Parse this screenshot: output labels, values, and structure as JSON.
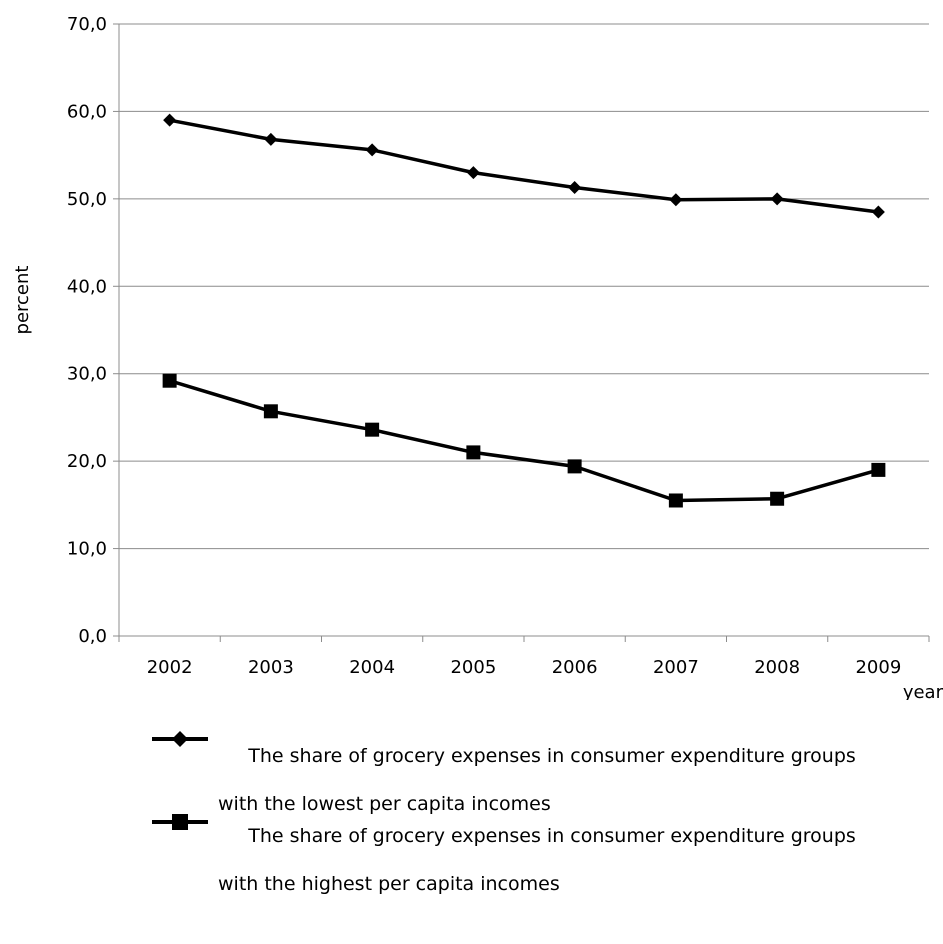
{
  "chart_data": {
    "type": "line",
    "title": "",
    "xlabel": "year",
    "ylabel": "percent",
    "categories": [
      "2002",
      "2003",
      "2004",
      "2005",
      "2006",
      "2007",
      "2008",
      "2009"
    ],
    "ylim": [
      0,
      70
    ],
    "yticks": [
      "0,0",
      "10,0",
      "20,0",
      "30,0",
      "40,0",
      "50,0",
      "60,0",
      "70,0"
    ],
    "grid": "horizontal",
    "legend_position": "bottom",
    "series": [
      {
        "name_line1": "The share of grocery expenses in consumer expenditure groups",
        "name_line2": "with the lowest per capita incomes",
        "marker": "diamond",
        "color": "#000000",
        "values": [
          59.0,
          56.8,
          55.6,
          53.0,
          51.3,
          49.9,
          50.0,
          48.5
        ]
      },
      {
        "name_line1": "The share of grocery expenses in consumer expenditure groups",
        "name_line2": "with the highest per capita incomes",
        "marker": "square",
        "color": "#000000",
        "values": [
          29.2,
          25.7,
          23.6,
          21.0,
          19.4,
          15.5,
          15.7,
          19.0
        ]
      }
    ]
  }
}
